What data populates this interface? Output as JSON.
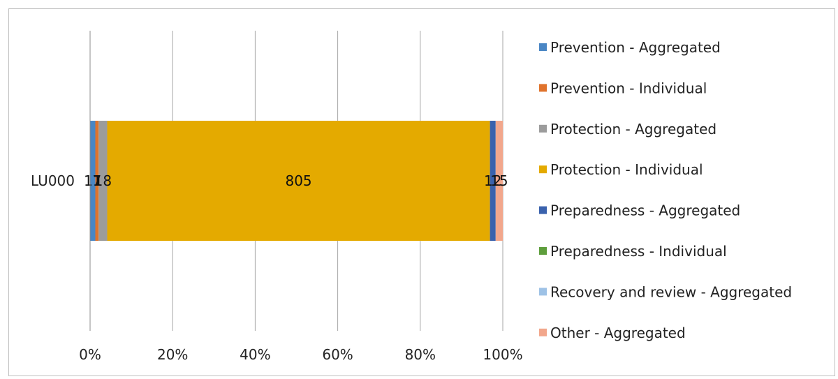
{
  "chart_data": {
    "type": "bar",
    "orientation": "horizontal",
    "stacked": "percent",
    "categories": [
      "LU000"
    ],
    "series": [
      {
        "name": "Prevention - Aggregated",
        "values": [
          11
        ],
        "label": "11",
        "color": "#4a86c4"
      },
      {
        "name": "Prevention - Individual",
        "values": [
          7
        ],
        "label": "7",
        "color": "#e0732c"
      },
      {
        "name": "Protection - Aggregated",
        "values": [
          18
        ],
        "label": "18",
        "color": "#9c9c9c"
      },
      {
        "name": "Protection - Individual",
        "values": [
          805
        ],
        "label": "805",
        "color": "#e4aa00"
      },
      {
        "name": "Preparedness - Aggregated",
        "values": [
          12
        ],
        "label": "12",
        "color": "#3a62ad"
      },
      {
        "name": "Preparedness - Individual",
        "values": [
          0
        ],
        "label": "",
        "color": "#5e9e3c"
      },
      {
        "name": "Recovery and review - Aggregated",
        "values": [
          0
        ],
        "label": "",
        "color": "#9ec2e6"
      },
      {
        "name": "Other - Aggregated",
        "values": [
          15
        ],
        "label": "15",
        "color": "#f2a78c"
      }
    ],
    "x_ticks": [
      "0%",
      "20%",
      "40%",
      "60%",
      "80%",
      "100%"
    ],
    "xlim": [
      0,
      100
    ],
    "grid": "vertical",
    "legend": "right"
  }
}
